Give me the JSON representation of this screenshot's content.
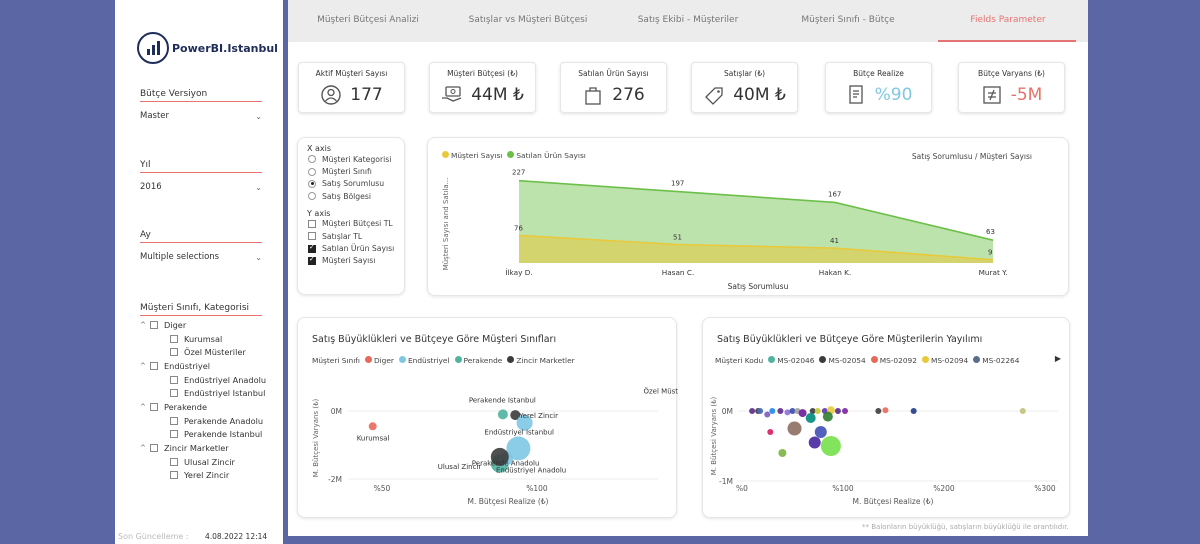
{
  "sidebar": {
    "logo_text": "PowerBI.Istanbul",
    "slicers": [
      {
        "title": "Bütçe Versiyon",
        "value": "Master"
      },
      {
        "title": "Yıl",
        "value": "2016"
      },
      {
        "title": "Ay",
        "value": "Multiple selections"
      }
    ],
    "tree_title": "Müşteri Sınıfı, Kategorisi",
    "tree": [
      {
        "label": "Diger",
        "level": 0
      },
      {
        "label": "Kurumsal",
        "level": 1
      },
      {
        "label": "Özel Müsteriler",
        "level": 1
      },
      {
        "label": "Endüstriyel",
        "level": 0
      },
      {
        "label": "Endüstriyel Anadolu",
        "level": 1
      },
      {
        "label": "Endüstriyel Istanbul",
        "level": 1
      },
      {
        "label": "Perakende",
        "level": 0
      },
      {
        "label": "Perakende Anadolu",
        "level": 1
      },
      {
        "label": "Perakende Istanbul",
        "level": 1
      },
      {
        "label": "Zincir Marketler",
        "level": 0
      },
      {
        "label": "Ulusal Zincir",
        "level": 1
      },
      {
        "label": "Yerel Zincir",
        "level": 1
      }
    ],
    "updated_label": "Son Güncelleme :",
    "updated_value": "4.08.2022 12:14"
  },
  "tabs": [
    {
      "label": "Müşteri Bütçesi Analizi",
      "active": false
    },
    {
      "label": "Satışlar vs Müşteri Bütçesi",
      "active": false
    },
    {
      "label": "Satış Ekibi - Müşteriler",
      "active": false
    },
    {
      "label": "Müşteri Sınıfı - Bütçe",
      "active": false
    },
    {
      "label": "Fields Parameter",
      "active": true
    }
  ],
  "kpis": [
    {
      "title": "Aktif Müşteri Sayısı",
      "value": "177",
      "icon": "user-icon",
      "color": "#333333"
    },
    {
      "title": "Müşteri Bütçesi (₺)",
      "value": "44M ₺",
      "icon": "money-hand-icon",
      "color": "#333333"
    },
    {
      "title": "Satılan Ürün Sayısı",
      "value": "276",
      "icon": "bag-icon",
      "color": "#333333"
    },
    {
      "title": "Satışlar (₺)",
      "value": "40M ₺",
      "icon": "price-tag-icon",
      "color": "#333333"
    },
    {
      "title": "Bütçe Realize",
      "value": "%90",
      "icon": "budget-doc-icon",
      "color": "#7ec8e3"
    },
    {
      "title": "Bütçe Varyans (₺)",
      "value": "-5M",
      "icon": "variance-icon",
      "color": "#e57368"
    }
  ],
  "field_params": {
    "x_title": "X axis",
    "x_options": [
      {
        "label": "Müşteri Kategorisi",
        "selected": false
      },
      {
        "label": "Müşteri Sınıfı",
        "selected": false
      },
      {
        "label": "Satış Sorumlusu",
        "selected": true
      },
      {
        "label": "Satış Bölgesi",
        "selected": false
      }
    ],
    "y_title": "Y axis",
    "y_options": [
      {
        "label": "Müşteri Bütçesi TL",
        "checked": false
      },
      {
        "label": "Satışlar TL",
        "checked": false
      },
      {
        "label": "Satılan Ürün Sayısı",
        "checked": true
      },
      {
        "label": "Müşteri Sayısı",
        "checked": true
      }
    ]
  },
  "area_chart": {
    "header_right": "Satış Sorumlusu  /  Müşteri Sayısı",
    "colors": {
      "musteri": "#e8c93a",
      "urun": "#6cc04a"
    },
    "chart_data": {
      "type": "area",
      "categories": [
        "İlkay D.",
        "Hasan C.",
        "Hakan K.",
        "Murat Y."
      ],
      "series": [
        {
          "name": "Satılan Ürün Sayısı",
          "values": [
            227,
            197,
            167,
            63
          ]
        },
        {
          "name": "Müşteri Sayısı",
          "values": [
            76,
            51,
            41,
            9
          ]
        }
      ],
      "xlabel": "Satış Sorumlusu",
      "ylabel": "Müşteri Sayısı and Satıla...",
      "legend": "top-left"
    }
  },
  "scatter1": {
    "title": "Satış Büyüklükleri ve Bütçeye Göre Müşteri Sınıfları",
    "legend_title": "Müşteri Sınıfı",
    "chart_data": {
      "type": "scatter",
      "xlabel": "M. Bütçesi Realize (₺)",
      "ylabel": "M. Bütçesi Varyans (₺)",
      "x_ticks": [
        "%50",
        "%100"
      ],
      "y_ticks": [
        "0M",
        "-2M"
      ],
      "series": [
        {
          "name": "Diger",
          "color": "#e8685a"
        },
        {
          "name": "Endüstriyel",
          "color": "#7ec8e3"
        },
        {
          "name": "Perakende",
          "color": "#4fb3a0"
        },
        {
          "name": "Zincir Marketler",
          "color": "#3c3c3c"
        }
      ],
      "points": [
        {
          "label": "Özel Müsteriler",
          "series": "Diger",
          "x": 1.55,
          "y": 0.6,
          "r": 6
        },
        {
          "label": "Kurumsal",
          "series": "Diger",
          "x": 0.47,
          "y": -0.45,
          "r": 4
        },
        {
          "label": "Perakende Istanbul",
          "series": "Perakende",
          "x": 0.89,
          "y": -0.1,
          "r": 5
        },
        {
          "label": "Yerel Zincir",
          "series": "Zincir Marketler",
          "x": 0.93,
          "y": -0.12,
          "r": 5
        },
        {
          "label": "",
          "series": "Endüstriyel",
          "x": 0.96,
          "y": -0.35,
          "r": 8
        },
        {
          "label": "Endüstriyel Istanbul",
          "series": "Endüstriyel",
          "x": 0.94,
          "y": -1.1,
          "r": 12
        },
        {
          "label": "Perakende Anadolu",
          "series": "Perakende",
          "x": 0.88,
          "y": -1.55,
          "r": 9
        },
        {
          "label": "Endüstriyel Anadolu",
          "series": "Endüstriyel",
          "x": 0.9,
          "y": -1.4,
          "r": 7
        },
        {
          "label": "Ulusal Zincir",
          "series": "Zincir Marketler",
          "x": 0.88,
          "y": -1.35,
          "r": 9
        }
      ]
    }
  },
  "scatter2": {
    "title": "Satış Büyüklükleri ve Bütçeye Göre Müşterilerin Yayılımı",
    "legend_title": "Müşteri Kodu",
    "legend_items": [
      {
        "name": "MS-02046",
        "color": "#4fb3a0"
      },
      {
        "name": "MS-02054",
        "color": "#3c3c3c"
      },
      {
        "name": "MS-02092",
        "color": "#e8685a"
      },
      {
        "name": "MS-02094",
        "color": "#e8c93a"
      },
      {
        "name": "MS-02264",
        "color": "#5a6e8a"
      }
    ],
    "chart_data": {
      "type": "scatter",
      "xlabel": "M. Bütçesi Realize (₺)",
      "ylabel": "M. Bütçesi Varyans (₺)",
      "x_ticks": [
        "%0",
        "%100",
        "%200",
        "%300"
      ],
      "y_ticks": [
        "0M",
        "-1M"
      ],
      "points": [
        {
          "x": 0.1,
          "y": 0.0,
          "r": 3,
          "color": "#5b2a86"
        },
        {
          "x": 0.16,
          "y": 0.0,
          "r": 3,
          "color": "#3c3c3c"
        },
        {
          "x": 0.18,
          "y": 0.0,
          "r": 3,
          "color": "#4b6cb7"
        },
        {
          "x": 0.25,
          "y": -0.05,
          "r": 3,
          "color": "#7e57c2"
        },
        {
          "x": 0.3,
          "y": 0.0,
          "r": 3,
          "color": "#1e88e5"
        },
        {
          "x": 0.38,
          "y": 0.0,
          "r": 3,
          "color": "#5b2a86"
        },
        {
          "x": 0.45,
          "y": -0.02,
          "r": 3,
          "color": "#8e6fd8"
        },
        {
          "x": 0.5,
          "y": 0.0,
          "r": 3,
          "color": "#3949ab"
        },
        {
          "x": 0.55,
          "y": 0.0,
          "r": 3,
          "color": "#9e9e9e"
        },
        {
          "x": 0.6,
          "y": -0.03,
          "r": 4,
          "color": "#6a1b9a"
        },
        {
          "x": 0.7,
          "y": 0.0,
          "r": 3,
          "color": "#3c3c3c"
        },
        {
          "x": 0.75,
          "y": 0.0,
          "r": 3,
          "color": "#c0ca33"
        },
        {
          "x": 0.82,
          "y": 0.0,
          "r": 3,
          "color": "#5e35b1"
        },
        {
          "x": 0.88,
          "y": 0.01,
          "r": 4,
          "color": "#e8c93a"
        },
        {
          "x": 0.95,
          "y": 0.0,
          "r": 3,
          "color": "#5b2a86"
        },
        {
          "x": 1.02,
          "y": 0.0,
          "r": 3,
          "color": "#7b1fa2"
        },
        {
          "x": 1.35,
          "y": 0.0,
          "r": 3,
          "color": "#3c3c3c"
        },
        {
          "x": 1.42,
          "y": 0.01,
          "r": 3,
          "color": "#e8685a"
        },
        {
          "x": 1.7,
          "y": 0.0,
          "r": 3,
          "color": "#1e3a8a"
        },
        {
          "x": 2.78,
          "y": 0.0,
          "r": 3,
          "color": "#c0c07a"
        },
        {
          "x": 0.28,
          "y": -0.3,
          "r": 3,
          "color": "#d81b60"
        },
        {
          "x": 0.52,
          "y": -0.25,
          "r": 7,
          "color": "#8d6e63"
        },
        {
          "x": 0.78,
          "y": -0.3,
          "r": 6,
          "color": "#3f51b5"
        },
        {
          "x": 0.72,
          "y": -0.45,
          "r": 6,
          "color": "#4527a0"
        },
        {
          "x": 0.88,
          "y": -0.5,
          "r": 10,
          "color": "#76e04a"
        },
        {
          "x": 0.4,
          "y": -0.6,
          "r": 4,
          "color": "#7cb342"
        },
        {
          "x": 0.85,
          "y": -0.08,
          "r": 5,
          "color": "#2e7d32"
        },
        {
          "x": 0.68,
          "y": -0.1,
          "r": 5,
          "color": "#00897b"
        }
      ]
    }
  },
  "note": "** Balonların büyüklüğü, satışların büyüklüğü ile orantılıdır."
}
